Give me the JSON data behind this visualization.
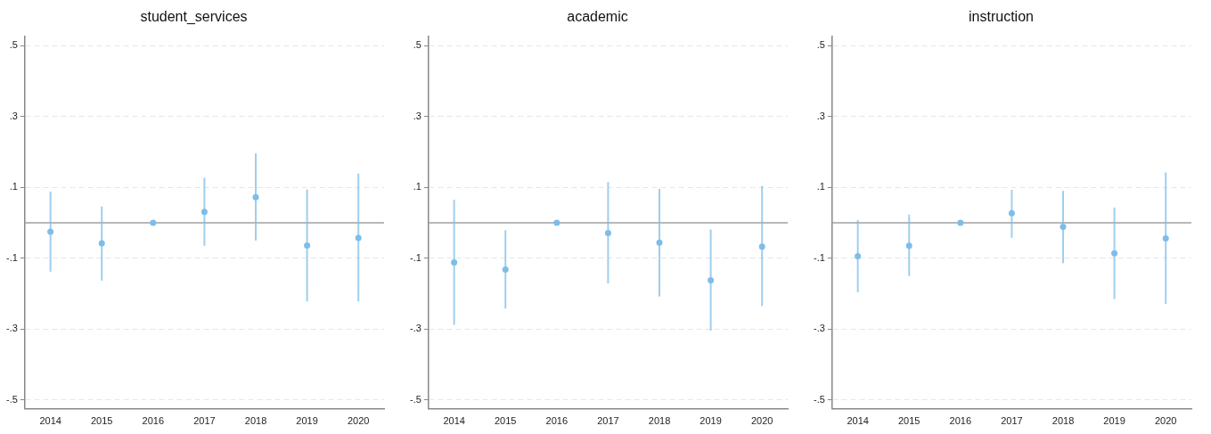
{
  "chart_data": [
    {
      "type": "scatter",
      "title": "student_services",
      "categories": [
        "2014",
        "2015",
        "2016",
        "2017",
        "2018",
        "2019",
        "2020"
      ],
      "series": [
        {
          "color": "#7dbde9",
          "values": [
            -0.025,
            -0.058,
            0,
            0.031,
            0.072,
            -0.064,
            -0.043
          ],
          "errors": [
            [
              -0.138,
              0.088
            ],
            [
              -0.163,
              0.046
            ],
            null,
            [
              -0.065,
              0.127
            ],
            [
              -0.05,
              0.196
            ],
            [
              -0.222,
              0.094
            ],
            [
              -0.222,
              0.139
            ]
          ]
        }
      ],
      "ylim": [
        -0.525,
        0.525
      ],
      "yticks": [
        {
          "value": -0.5,
          "label": "-.5"
        },
        {
          "value": -0.3,
          "label": "-.3"
        },
        {
          "value": -0.1,
          "label": "-.1"
        },
        {
          "value": 0.1,
          "label": ".1"
        },
        {
          "value": 0.3,
          "label": ".3"
        },
        {
          "value": 0.5,
          "label": ".5"
        }
      ],
      "ref_lines": [
        {
          "axis": "y",
          "value": 0,
          "color": "#a0a0a0"
        }
      ],
      "grid": "y",
      "marker": "circle",
      "legend": false
    },
    {
      "type": "scatter",
      "title": "academic",
      "categories": [
        "2014",
        "2015",
        "2016",
        "2017",
        "2018",
        "2019",
        "2020"
      ],
      "series": [
        {
          "color": "#7dbde9",
          "values": [
            -0.112,
            -0.132,
            0,
            -0.029,
            -0.056,
            -0.162,
            -0.067
          ],
          "errors": [
            [
              -0.288,
              0.065
            ],
            [
              -0.242,
              -0.021
            ],
            null,
            [
              -0.171,
              0.115
            ],
            [
              -0.208,
              0.096
            ],
            [
              -0.304,
              -0.019
            ],
            [
              -0.235,
              0.104
            ]
          ]
        }
      ],
      "ylim": [
        -0.525,
        0.525
      ],
      "yticks": [
        {
          "value": -0.5,
          "label": "-.5"
        },
        {
          "value": -0.3,
          "label": "-.3"
        },
        {
          "value": -0.1,
          "label": "-.1"
        },
        {
          "value": 0.1,
          "label": ".1"
        },
        {
          "value": 0.3,
          "label": ".3"
        },
        {
          "value": 0.5,
          "label": ".5"
        }
      ],
      "ref_lines": [
        {
          "axis": "y",
          "value": 0,
          "color": "#a0a0a0"
        }
      ],
      "grid": "y",
      "marker": "circle",
      "legend": false
    },
    {
      "type": "scatter",
      "title": "instruction",
      "categories": [
        "2014",
        "2015",
        "2016",
        "2017",
        "2018",
        "2019",
        "2020"
      ],
      "series": [
        {
          "color": "#7dbde9",
          "values": [
            -0.094,
            -0.065,
            0,
            0.027,
            -0.011,
            -0.086,
            -0.044
          ],
          "errors": [
            [
              -0.196,
              0.008
            ],
            [
              -0.15,
              0.023
            ],
            null,
            [
              -0.042,
              0.093
            ],
            [
              -0.114,
              0.09
            ],
            [
              -0.215,
              0.043
            ],
            [
              -0.229,
              0.142
            ]
          ]
        }
      ],
      "ylim": [
        -0.525,
        0.525
      ],
      "yticks": [
        {
          "value": -0.5,
          "label": "-.5"
        },
        {
          "value": -0.3,
          "label": "-.3"
        },
        {
          "value": -0.1,
          "label": "-.1"
        },
        {
          "value": 0.1,
          "label": ".1"
        },
        {
          "value": 0.3,
          "label": ".3"
        },
        {
          "value": 0.5,
          "label": ".5"
        }
      ],
      "ref_lines": [
        {
          "axis": "y",
          "value": 0,
          "color": "#a0a0a0"
        }
      ],
      "grid": "y",
      "marker": "circle",
      "legend": false
    }
  ]
}
